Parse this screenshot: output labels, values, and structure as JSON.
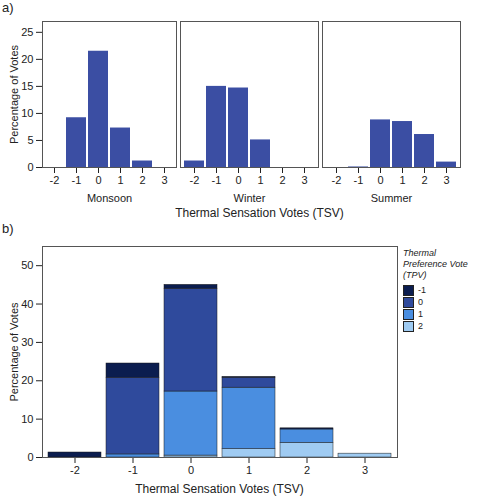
{
  "chart_data": [
    {
      "type": "bar",
      "title": "a)",
      "x_label": "Thermal Sensation Votes (TSV)",
      "y_label": "Percentage of Votes",
      "categories": [
        -2,
        -1,
        0,
        1,
        2,
        3
      ],
      "color": "#3b4ea3",
      "series": [
        {
          "name": "Monsoon",
          "values": [
            0,
            9.2,
            21.5,
            7.3,
            1.2,
            0
          ]
        },
        {
          "name": "Winter",
          "values": [
            1.2,
            15.0,
            14.7,
            5.1,
            0,
            0
          ]
        },
        {
          "name": "Summer",
          "values": [
            0,
            0.1,
            8.8,
            8.5,
            6.1,
            1.0
          ]
        }
      ],
      "ylim": [
        0,
        27
      ],
      "yticks": [
        0,
        5,
        10,
        15,
        20,
        25
      ]
    },
    {
      "type": "bar",
      "title": "b)",
      "stacked": true,
      "x_label": "Thermal Sensation Votes (TSV)",
      "y_label": "Percentage of Votes",
      "legend": "right",
      "legend_title": "Thermal Preference Vote (TPV)",
      "categories": [
        -2,
        -1,
        0,
        1,
        2,
        3
      ],
      "series": [
        {
          "name": "-1",
          "color": "#0b1d4f",
          "values": [
            1.3,
            3.7,
            1.0,
            0.2,
            0.3,
            0
          ]
        },
        {
          "name": "0",
          "color": "#2f4a9c",
          "values": [
            0,
            20.0,
            26.8,
            2.6,
            0,
            0
          ]
        },
        {
          "name": "1",
          "color": "#4a8ee0",
          "values": [
            0,
            0.8,
            16.7,
            16.0,
            3.5,
            0
          ]
        },
        {
          "name": "2",
          "color": "#9fcbf2",
          "values": [
            0,
            0,
            0.5,
            2.2,
            3.8,
            1.0
          ]
        }
      ],
      "ylim": [
        0,
        55
      ],
      "yticks": [
        0,
        10,
        20,
        30,
        40,
        50
      ]
    }
  ]
}
